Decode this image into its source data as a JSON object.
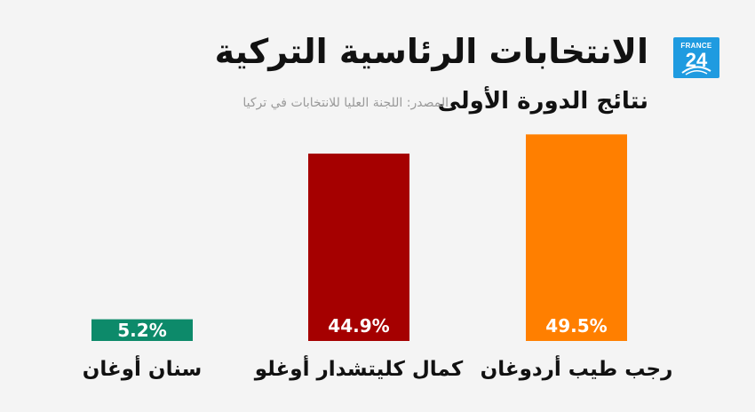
{
  "brand": {
    "name": "FRANCE",
    "number": "24"
  },
  "header": {
    "title": "الانتخابات الرئاسية التركية",
    "subtitle": "نتائج الدورة الأولى",
    "source": "المصدر: اللجنة العليا للانتخابات في تركيا"
  },
  "chart_data": {
    "type": "bar",
    "categories": [
      "رجب طيب أردوغان",
      "كمال كليتشدار أوغلو",
      "سنان أوغان"
    ],
    "values": [
      49.5,
      44.9,
      5.2
    ],
    "value_labels": [
      "49.5%",
      "44.9%",
      "5.2%"
    ],
    "colors": [
      "#ff7f00",
      "#a50000",
      "#0d8a6a"
    ],
    "ylim": [
      0,
      100
    ],
    "grid": false
  }
}
